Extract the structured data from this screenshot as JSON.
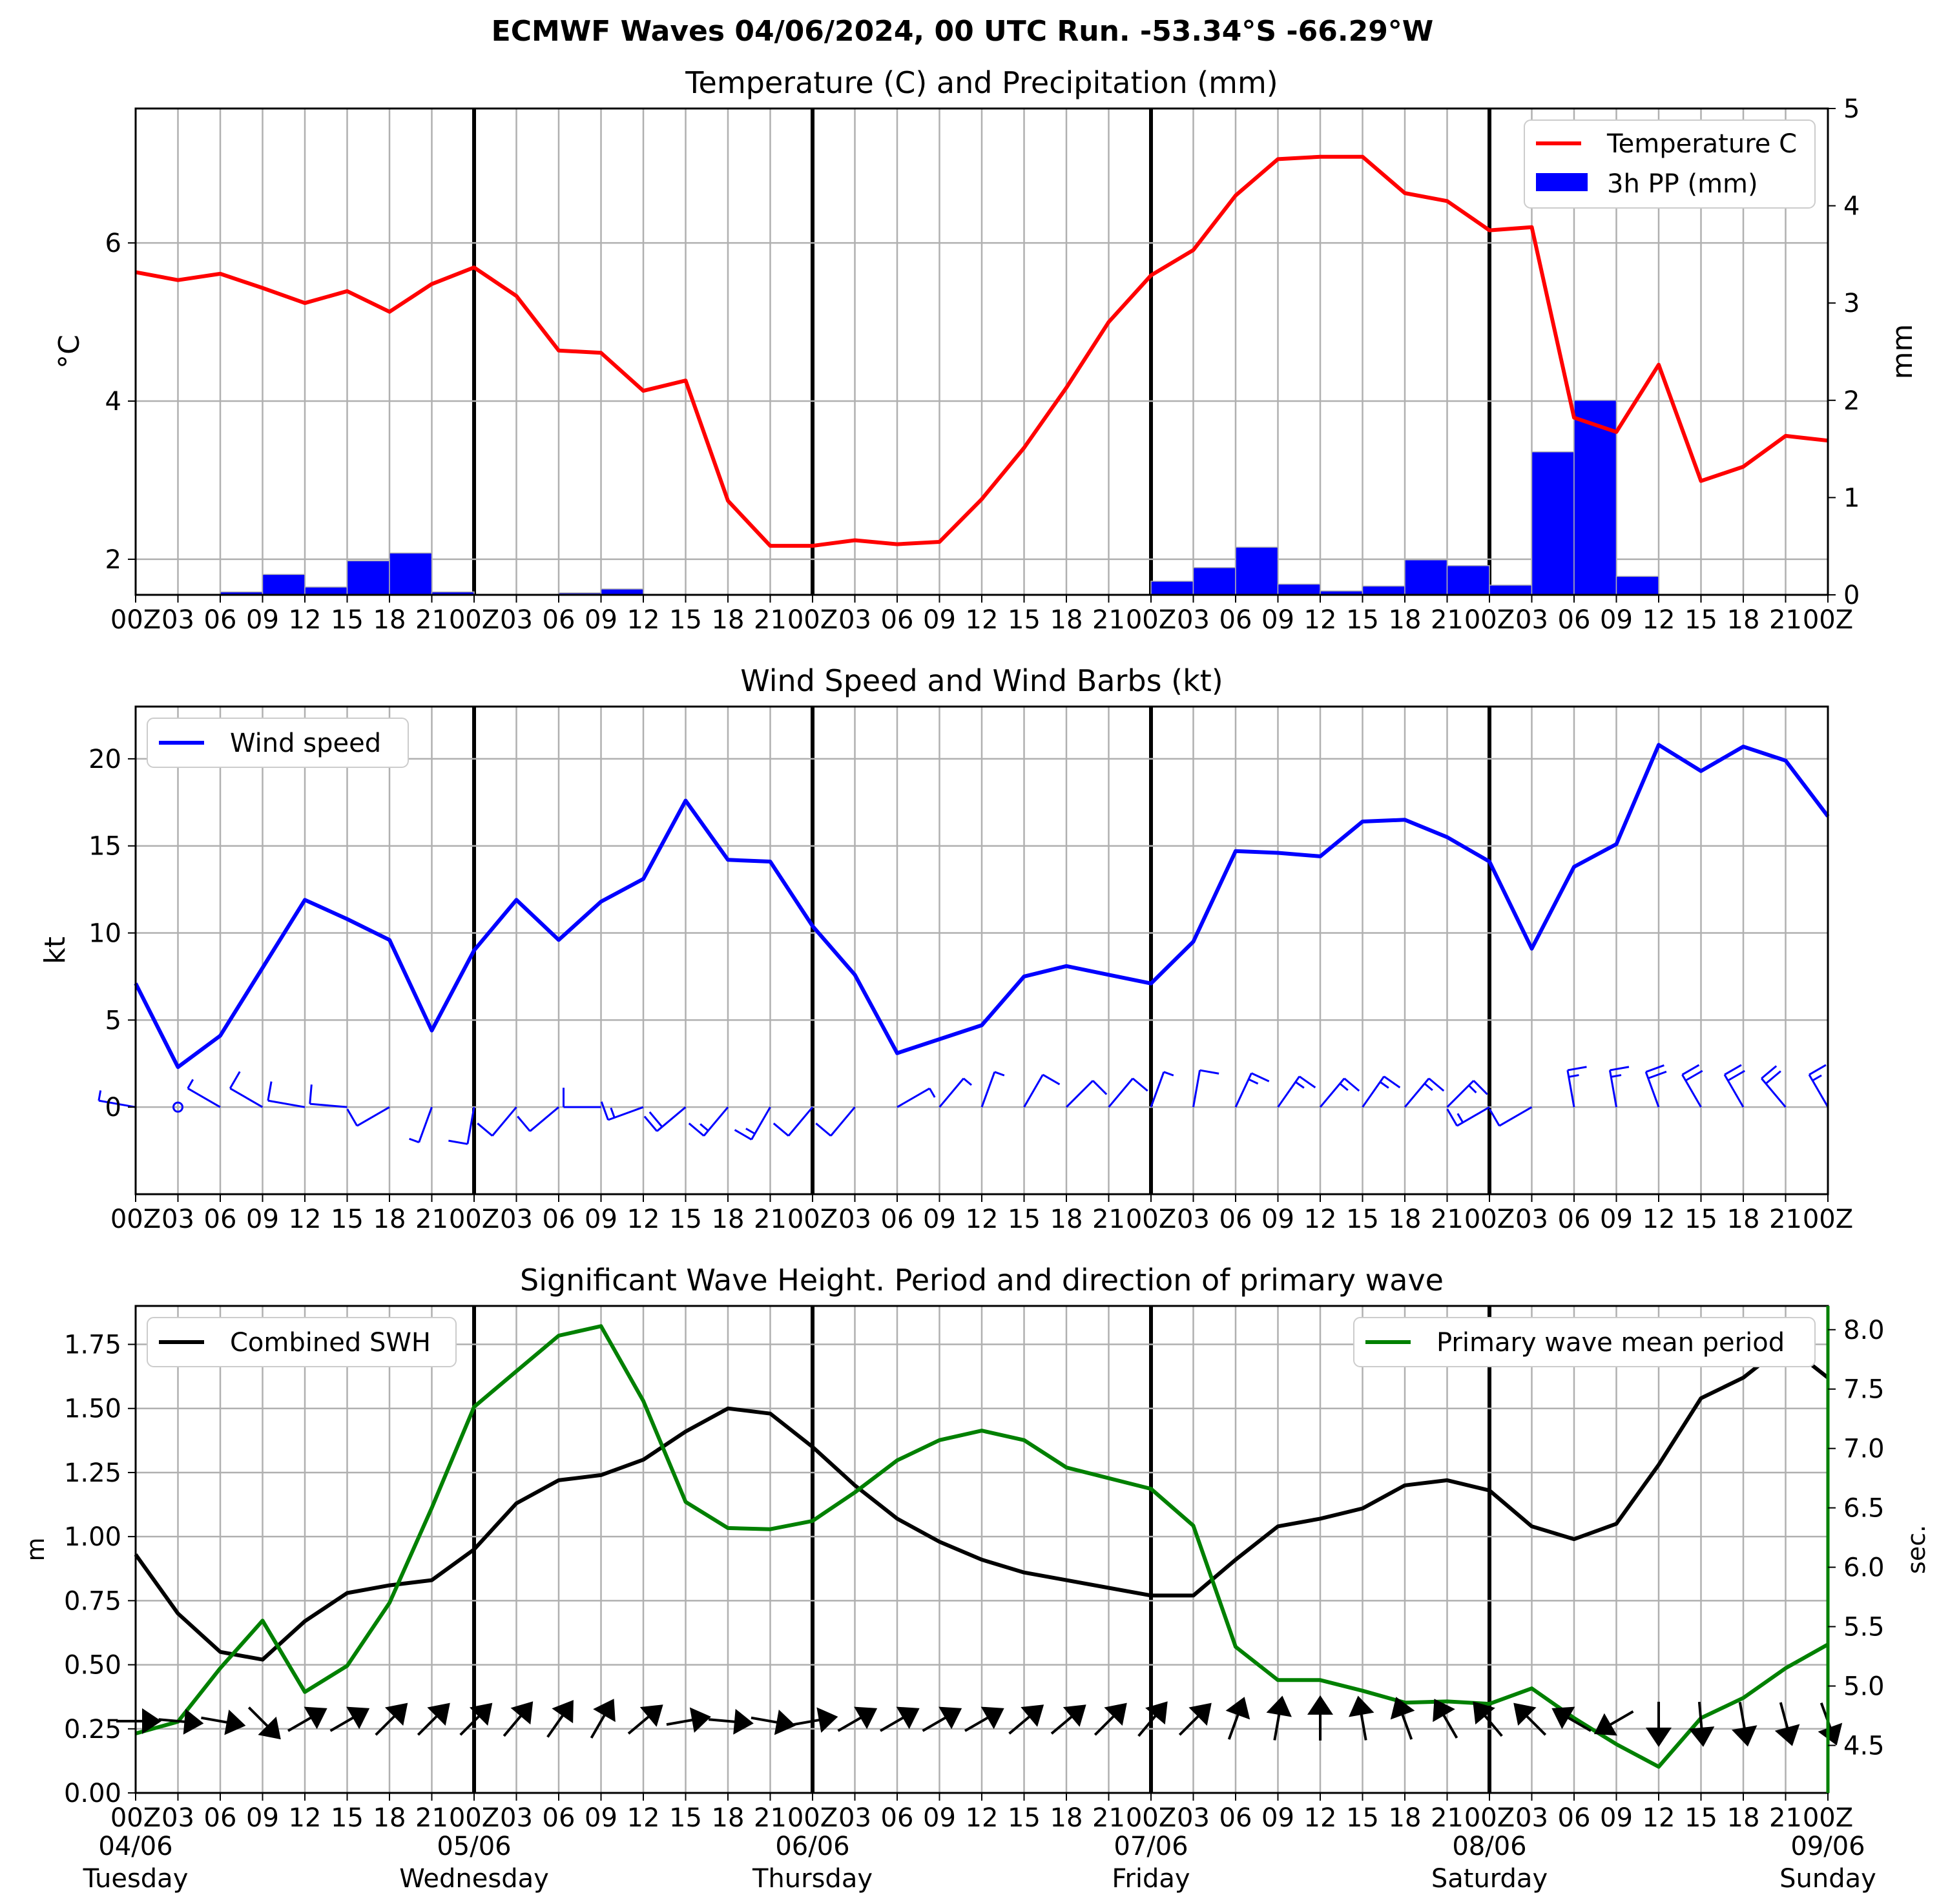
{
  "figure": {
    "title": "ECMWF Waves 04/06/2024, 00 UTC Run. -53.34°S -66.29°W",
    "hour_ticks": [
      "00Z",
      "03",
      "06",
      "09",
      "12",
      "15",
      "18",
      "21",
      "00Z",
      "03",
      "06",
      "09",
      "12",
      "15",
      "18",
      "21",
      "00Z",
      "03",
      "06",
      "09",
      "12",
      "15",
      "18",
      "21",
      "00Z",
      "03",
      "06",
      "09",
      "12",
      "15",
      "18",
      "21",
      "00Z",
      "03",
      "06",
      "09",
      "12",
      "15",
      "18",
      "21",
      "00Z"
    ],
    "day_labels": [
      {
        "date": "04/06",
        "weekday": "Tuesday"
      },
      {
        "date": "05/06",
        "weekday": "Wednesday"
      },
      {
        "date": "06/06",
        "weekday": "Thursday"
      },
      {
        "date": "07/06",
        "weekday": "Friday"
      },
      {
        "date": "08/06",
        "weekday": "Saturday"
      },
      {
        "date": "09/06",
        "weekday": "Sunday"
      }
    ]
  },
  "chart_data": [
    {
      "type": "line",
      "title": "Temperature (C) and Precipitation (mm)",
      "x_hours": [
        0,
        3,
        6,
        9,
        12,
        15,
        18,
        21,
        24,
        27,
        30,
        33,
        36,
        39,
        42,
        45,
        48,
        51,
        54,
        57,
        60,
        63,
        66,
        69,
        72,
        75,
        78,
        81,
        84,
        87,
        90,
        93,
        96,
        99,
        102,
        105,
        108,
        111,
        114,
        117,
        120
      ],
      "ylabel_left": "°C",
      "ylabel_right": "mm",
      "ylim_left": [
        1.55,
        7.7
      ],
      "ylim_right": [
        0,
        5
      ],
      "yticks_left": [
        2,
        4,
        6
      ],
      "yticks_right": [
        0,
        1,
        2,
        3,
        4,
        5
      ],
      "grid": true,
      "legend": "top-right",
      "colors": {
        "temperature": "#ff0000",
        "precip": "#0000ff"
      },
      "series": [
        {
          "name": "Temperature C",
          "type": "line",
          "values": [
            5.63,
            5.53,
            5.61,
            5.43,
            5.24,
            5.39,
            5.13,
            5.48,
            5.69,
            5.33,
            4.64,
            4.61,
            4.13,
            4.26,
            2.74,
            2.17,
            2.17,
            2.24,
            2.19,
            2.22,
            2.76,
            3.41,
            4.17,
            5.0,
            5.59,
            5.91,
            6.6,
            7.06,
            7.09,
            7.09,
            6.63,
            6.53,
            6.16,
            6.2,
            3.79,
            3.61,
            4.46,
            2.99,
            3.17,
            3.56,
            3.5
          ]
        },
        {
          "name": "3h PP (mm)",
          "type": "bar",
          "values": [
            0,
            0,
            0.03,
            0.21,
            0.08,
            0.35,
            0.43,
            0.03,
            0,
            0,
            0.02,
            0.06,
            0,
            0,
            0,
            0,
            0,
            0,
            0,
            0,
            0,
            0,
            0,
            0,
            0.14,
            0.28,
            0.49,
            0.11,
            0.04,
            0.09,
            0.36,
            0.3,
            0.1,
            1.47,
            2.0,
            0.19,
            0,
            0,
            0,
            0
          ]
        }
      ]
    },
    {
      "type": "line",
      "title": "Wind Speed and Wind Barbs (kt)",
      "x_hours": [
        0,
        3,
        6,
        9,
        12,
        15,
        18,
        21,
        24,
        27,
        30,
        33,
        36,
        39,
        42,
        45,
        48,
        51,
        54,
        57,
        60,
        63,
        66,
        69,
        72,
        75,
        78,
        81,
        84,
        87,
        90,
        93,
        96,
        99,
        102,
        105,
        108,
        111,
        114,
        117,
        120
      ],
      "ylabel": "kt",
      "ylim": [
        -5,
        23
      ],
      "yticks": [
        0,
        5,
        10,
        15,
        20
      ],
      "grid": true,
      "legend": "top-left",
      "colors": {
        "wind": "#0000ff"
      },
      "series": [
        {
          "name": "Wind speed",
          "values": [
            7.1,
            2.3,
            4.1,
            8.0,
            11.9,
            10.8,
            9.6,
            4.4,
            9.0,
            11.9,
            9.6,
            11.8,
            13.1,
            17.6,
            14.2,
            14.1,
            10.4,
            7.6,
            3.1,
            3.9,
            4.7,
            7.5,
            8.1,
            7.6,
            7.1,
            9.5,
            14.7,
            14.6,
            14.4,
            16.4,
            16.5,
            15.5,
            14.1,
            9.1,
            13.8,
            15.1,
            20.8,
            19.3,
            20.7,
            19.9,
            16.7
          ]
        }
      ],
      "wind_barbs": {
        "note": "direction (degrees from, meteorological) and speed (kt) per time step",
        "directions": [
          280,
          0,
          300,
          300,
          280,
          275,
          240,
          200,
          190,
          220,
          230,
          270,
          250,
          230,
          220,
          210,
          220,
          220,
          60,
          40,
          20,
          30,
          45,
          40,
          20,
          10,
          25,
          35,
          40,
          35,
          40,
          45,
          240,
          240,
          350,
          350,
          340,
          330,
          330,
          320,
          330
        ],
        "speeds": [
          7.1,
          2.3,
          4.1,
          8.0,
          11.9,
          10.8,
          9.6,
          4.4,
          9.0,
          11.9,
          9.6,
          11.8,
          13.1,
          17.6,
          14.2,
          14.1,
          10.4,
          7.6,
          3.1,
          3.9,
          4.7,
          7.5,
          8.1,
          7.6,
          7.1,
          9.5,
          14.7,
          14.6,
          14.4,
          16.4,
          16.5,
          15.5,
          14.1,
          9.1,
          13.8,
          15.1,
          20.8,
          19.3,
          20.7,
          19.9,
          16.7
        ]
      }
    },
    {
      "type": "line",
      "title": "Significant Wave Height. Period and direction of primary wave",
      "x_hours": [
        0,
        3,
        6,
        9,
        12,
        15,
        18,
        21,
        24,
        27,
        30,
        33,
        36,
        39,
        42,
        45,
        48,
        51,
        54,
        57,
        60,
        63,
        66,
        69,
        72,
        75,
        78,
        81,
        84,
        87,
        90,
        93,
        96,
        99,
        102,
        105,
        108,
        111,
        114,
        117,
        120
      ],
      "ylabel_left": "m",
      "ylabel_right": "sec.",
      "ylim_left": [
        0,
        1.9
      ],
      "ylim_right": [
        4.1,
        8.2
      ],
      "yticks_left": [
        0.0,
        0.25,
        0.5,
        0.75,
        1.0,
        1.25,
        1.5,
        1.75
      ],
      "yticks_right": [
        4.5,
        5.0,
        5.5,
        6.0,
        6.5,
        7.0,
        7.5,
        8.0
      ],
      "grid": true,
      "colors": {
        "swh": "#000000",
        "period": "#008000"
      },
      "series": [
        {
          "name": "Combined SWH",
          "axis": "left",
          "legend": "top-left",
          "values": [
            0.93,
            0.7,
            0.55,
            0.52,
            0.67,
            0.78,
            0.81,
            0.83,
            0.95,
            1.13,
            1.22,
            1.24,
            1.3,
            1.41,
            1.5,
            1.48,
            1.35,
            1.2,
            1.07,
            0.98,
            0.91,
            0.86,
            0.83,
            0.8,
            0.77,
            0.77,
            0.91,
            1.04,
            1.07,
            1.11,
            1.2,
            1.22,
            1.18,
            1.04,
            0.99,
            1.05,
            1.28,
            1.54,
            1.62,
            1.75,
            1.62
          ]
        },
        {
          "name": "Primary wave mean period",
          "axis": "right",
          "legend": "top-right",
          "values": [
            4.6,
            4.7,
            5.15,
            5.55,
            4.95,
            5.17,
            5.7,
            6.5,
            7.35,
            7.65,
            7.95,
            8.03,
            7.4,
            6.55,
            6.33,
            6.32,
            6.39,
            6.63,
            6.9,
            7.07,
            7.15,
            7.07,
            6.84,
            6.75,
            6.66,
            6.35,
            5.33,
            5.05,
            5.05,
            4.96,
            4.86,
            4.87,
            4.85,
            4.98,
            4.73,
            4.51,
            4.32,
            4.73,
            4.9,
            5.15,
            5.35
          ]
        }
      ],
      "wave_direction_arrows": {
        "note": "direction the primary wave travels toward (degrees, 0 = up, clockwise)",
        "directions": [
          90,
          95,
          100,
          135,
          60,
          60,
          45,
          45,
          45,
          40,
          35,
          30,
          50,
          80,
          95,
          100,
          80,
          60,
          60,
          60,
          60,
          50,
          50,
          45,
          40,
          45,
          20,
          10,
          0,
          -10,
          -20,
          -30,
          -40,
          -45,
          -60,
          -120,
          -180,
          -185,
          -190,
          -195,
          -200
        ]
      }
    }
  ]
}
